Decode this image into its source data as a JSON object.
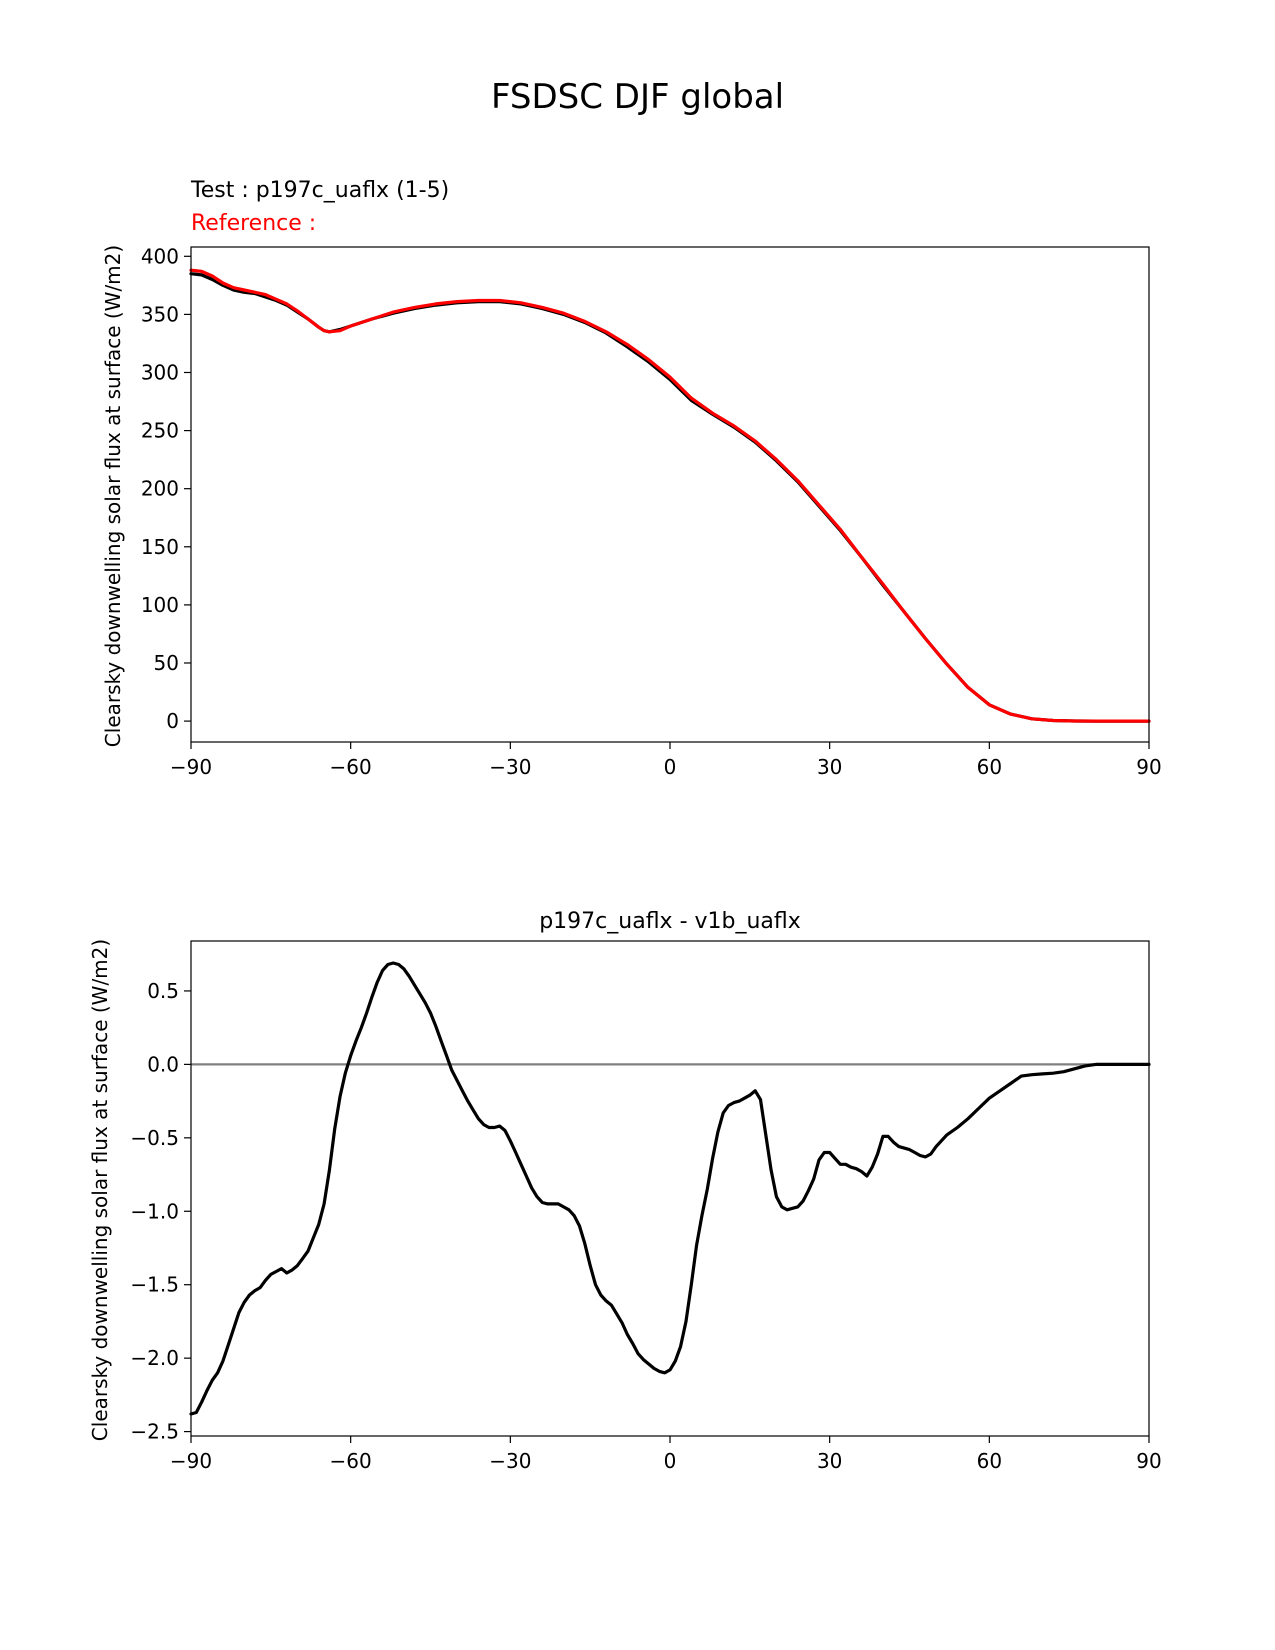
{
  "figure": {
    "title": "FSDSC DJF global"
  },
  "chart_data": [
    {
      "type": "line",
      "test_label": "Test : p197c_uaflx (1-5)",
      "reference_label": "Reference :",
      "xlabel": "",
      "ylabel": "Clearsky downwelling solar flux at surface (W/m2)",
      "xlim": [
        -90,
        90
      ],
      "ylim": [
        -18,
        408
      ],
      "xticks": [
        "−90",
        "−60",
        "−30",
        "0",
        "30",
        "60",
        "90"
      ],
      "yticks": [
        "0",
        "50",
        "100",
        "150",
        "200",
        "250",
        "300",
        "350",
        "400"
      ],
      "grid": false,
      "colors": {
        "test": "#000000",
        "reference": "#ff0000",
        "reference_label": "#ff0000"
      },
      "series": [
        {
          "key": "test",
          "x": [
            -90,
            -88,
            -86,
            -84,
            -82,
            -80,
            -78,
            -76,
            -74,
            -72,
            -70,
            -68,
            -66,
            -65,
            -64,
            -62,
            -60,
            -56,
            -52,
            -48,
            -44,
            -40,
            -36,
            -32,
            -28,
            -24,
            -20,
            -16,
            -12,
            -8,
            -4,
            0,
            4,
            8,
            12,
            16,
            20,
            24,
            28,
            32,
            36,
            40,
            44,
            48,
            52,
            56,
            60,
            64,
            68,
            72,
            76,
            80,
            84,
            90
          ],
          "y": [
            385,
            384,
            380,
            375,
            371,
            369,
            368,
            365,
            362,
            358,
            352,
            346,
            339,
            336,
            335,
            337,
            340,
            346,
            351,
            355,
            358,
            360,
            361,
            361,
            359,
            355,
            350,
            343,
            334,
            322,
            309,
            294,
            276,
            264,
            253,
            240,
            224,
            206,
            185,
            164,
            141,
            117,
            94,
            71,
            49,
            29,
            14,
            6,
            2,
            0.5,
            0.1,
            0,
            0,
            0
          ]
        },
        {
          "key": "reference",
          "x": [
            -90,
            -88,
            -86,
            -84,
            -82,
            -80,
            -78,
            -76,
            -74,
            -72,
            -70,
            -68,
            -66,
            -65,
            -64,
            -62,
            -60,
            -56,
            -52,
            -48,
            -44,
            -40,
            -36,
            -32,
            -28,
            -24,
            -20,
            -16,
            -12,
            -8,
            -4,
            0,
            4,
            8,
            12,
            16,
            20,
            24,
            28,
            32,
            36,
            40,
            44,
            48,
            52,
            56,
            60,
            64,
            68,
            72,
            76,
            80,
            84,
            90
          ],
          "y": [
            388,
            387,
            383,
            377,
            373,
            371,
            369,
            367,
            363,
            359,
            353,
            346,
            339,
            336,
            335,
            336,
            340,
            346,
            352,
            356,
            359,
            361,
            362,
            362,
            360,
            356,
            351,
            344,
            335,
            324,
            311,
            296,
            278,
            265,
            254,
            241,
            225,
            207,
            186,
            165,
            141,
            118,
            94,
            71,
            49,
            29,
            14,
            6,
            2,
            0.5,
            0.1,
            0,
            0,
            0
          ]
        }
      ]
    },
    {
      "type": "line",
      "title": "p197c_uaflx - v1b_uaflx",
      "xlabel": "",
      "ylabel": "Clearsky downwelling solar flux at surface (W/m2)",
      "xlim": [
        -90,
        90
      ],
      "ylim": [
        -2.53,
        0.84
      ],
      "xticks": [
        "−90",
        "−60",
        "−30",
        "0",
        "30",
        "60",
        "90"
      ],
      "yticks": [
        "−2.5",
        "−2.0",
        "−1.5",
        "−1.0",
        "−0.5",
        "0.0",
        "0.5"
      ],
      "grid": false,
      "zero_line": 0,
      "colors": {
        "diff": "#000000",
        "zero_line": "#808080"
      },
      "series": [
        {
          "key": "diff",
          "x": [
            -90,
            -89,
            -88,
            -87,
            -86,
            -85,
            -84,
            -83,
            -82,
            -81,
            -80,
            -79,
            -78,
            -77,
            -76,
            -75,
            -74,
            -73,
            -72,
            -71,
            -70,
            -69,
            -68,
            -67,
            -66,
            -65,
            -64,
            -63,
            -62,
            -61,
            -60,
            -59,
            -58,
            -57,
            -56,
            -55,
            -54,
            -53,
            -52,
            -51,
            -50,
            -49,
            -48,
            -47,
            -46,
            -45,
            -44,
            -43,
            -42,
            -41,
            -40,
            -39,
            -38,
            -37,
            -36,
            -35,
            -34,
            -33,
            -32,
            -31,
            -30,
            -29,
            -28,
            -27,
            -26,
            -25,
            -24,
            -23,
            -22,
            -21,
            -20,
            -19,
            -18,
            -17,
            -16,
            -15,
            -14,
            -13,
            -12,
            -11,
            -10,
            -9,
            -8,
            -7,
            -6,
            -5,
            -4,
            -3,
            -2,
            -1,
            0,
            1,
            2,
            3,
            4,
            5,
            6,
            7,
            8,
            9,
            10,
            11,
            12,
            13,
            14,
            15,
            16,
            17,
            18,
            19,
            20,
            21,
            22,
            23,
            24,
            25,
            26,
            27,
            28,
            29,
            30,
            31,
            32,
            33,
            34,
            35,
            36,
            37,
            38,
            39,
            40,
            41,
            42,
            43,
            44,
            45,
            46,
            47,
            48,
            49,
            50,
            52,
            54,
            56,
            58,
            60,
            62,
            64,
            66,
            68,
            70,
            72,
            74,
            76,
            78,
            80,
            82,
            84,
            86,
            88,
            90
          ],
          "y": [
            -2.38,
            -2.37,
            -2.3,
            -2.22,
            -2.15,
            -2.1,
            -2.02,
            -1.91,
            -1.8,
            -1.69,
            -1.62,
            -1.57,
            -1.54,
            -1.52,
            -1.47,
            -1.43,
            -1.41,
            -1.39,
            -1.42,
            -1.4,
            -1.37,
            -1.32,
            -1.27,
            -1.18,
            -1.09,
            -0.95,
            -0.72,
            -0.44,
            -0.22,
            -0.06,
            0.06,
            0.16,
            0.25,
            0.35,
            0.46,
            0.56,
            0.64,
            0.68,
            0.69,
            0.68,
            0.65,
            0.6,
            0.54,
            0.48,
            0.42,
            0.35,
            0.26,
            0.16,
            0.06,
            -0.04,
            -0.11,
            -0.18,
            -0.25,
            -0.31,
            -0.37,
            -0.41,
            -0.43,
            -0.43,
            -0.42,
            -0.45,
            -0.52,
            -0.6,
            -0.68,
            -0.76,
            -0.84,
            -0.9,
            -0.94,
            -0.95,
            -0.95,
            -0.95,
            -0.97,
            -0.99,
            -1.03,
            -1.1,
            -1.22,
            -1.37,
            -1.5,
            -1.57,
            -1.61,
            -1.64,
            -1.7,
            -1.76,
            -1.84,
            -1.9,
            -1.97,
            -2.01,
            -2.04,
            -2.07,
            -2.09,
            -2.1,
            -2.08,
            -2.02,
            -1.92,
            -1.75,
            -1.5,
            -1.23,
            -1.03,
            -0.85,
            -0.64,
            -0.46,
            -0.33,
            -0.28,
            -0.26,
            -0.25,
            -0.23,
            -0.21,
            -0.18,
            -0.24,
            -0.48,
            -0.72,
            -0.9,
            -0.97,
            -0.99,
            -0.98,
            -0.97,
            -0.93,
            -0.86,
            -0.78,
            -0.65,
            -0.6,
            -0.6,
            -0.64,
            -0.68,
            -0.68,
            -0.7,
            -0.71,
            -0.73,
            -0.76,
            -0.7,
            -0.61,
            -0.49,
            -0.49,
            -0.53,
            -0.56,
            -0.57,
            -0.58,
            -0.6,
            -0.62,
            -0.63,
            -0.61,
            -0.56,
            -0.48,
            -0.43,
            -0.37,
            -0.3,
            -0.23,
            -0.18,
            -0.13,
            -0.08,
            -0.07,
            -0.065,
            -0.06,
            -0.05,
            -0.03,
            -0.01,
            0,
            0,
            0,
            0,
            0,
            0
          ]
        }
      ]
    }
  ]
}
